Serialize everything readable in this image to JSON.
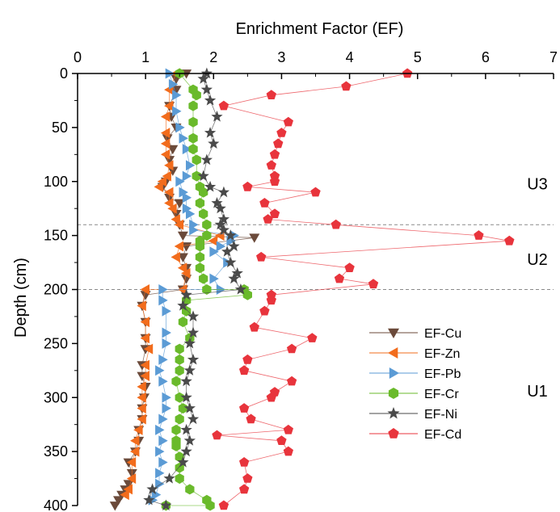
{
  "chart_data": {
    "type": "scatter",
    "title": "",
    "xlabel": "Enrichment Factor (EF)",
    "ylabel": "Depth (cm)",
    "xlim": [
      0,
      7
    ],
    "ylim": [
      0,
      400
    ],
    "y_reversed": true,
    "x_axis_position": "top",
    "x_ticks": [
      "0",
      "1",
      "2",
      "3",
      "4",
      "5",
      "6",
      "7"
    ],
    "y_ticks": [
      "0",
      "50",
      "100",
      "150",
      "200",
      "250",
      "300",
      "350",
      "400"
    ],
    "x_tick_values": [
      0,
      1,
      2,
      3,
      4,
      5,
      6,
      7
    ],
    "y_tick_values": [
      0,
      50,
      100,
      150,
      200,
      250,
      300,
      350,
      400
    ],
    "boundaries": [
      140,
      200
    ],
    "units": [
      {
        "label": "U3",
        "depth": 102
      },
      {
        "label": "U2",
        "depth": 172
      },
      {
        "label": "U1",
        "depth": 294
      }
    ],
    "legend_position": "lower-right",
    "series": [
      {
        "name": "EF-Cu",
        "color": "#6b4a3a",
        "marker": "triangle-down",
        "x": [
          1.6,
          1.45,
          1.45,
          1.35,
          1.38,
          1.45,
          1.32,
          1.4,
          1.35,
          1.4,
          1.3,
          1.25,
          1.35,
          1.5,
          1.45,
          1.5,
          1.55,
          2.6,
          1.6,
          1.55,
          1.6,
          1.6,
          1.55,
          1.55,
          1.0,
          0.95,
          1.0,
          1.0,
          1.0,
          0.95,
          0.95,
          1.0,
          0.98,
          0.95,
          0.95,
          0.9,
          0.9,
          0.85,
          0.75,
          0.8,
          0.75,
          0.7,
          0.65,
          0.6,
          0.55
        ],
        "y": [
          0,
          5,
          15,
          30,
          40,
          50,
          60,
          70,
          80,
          90,
          100,
          105,
          115,
          120,
          130,
          140,
          150,
          152,
          160,
          170,
          180,
          190,
          200,
          200,
          205,
          215,
          230,
          245,
          255,
          270,
          280,
          290,
          300,
          310,
          320,
          330,
          340,
          350,
          360,
          370,
          380,
          385,
          390,
          395,
          400
        ]
      },
      {
        "name": "EF-Zn",
        "color": "#f26c1c",
        "marker": "triangle-left",
        "x": [
          1.45,
          1.35,
          1.35,
          1.3,
          1.3,
          1.3,
          1.3,
          1.35,
          1.32,
          1.25,
          1.2,
          1.35,
          1.35,
          1.4,
          1.45,
          1.5,
          2.1,
          2.0,
          1.5,
          1.45,
          1.55,
          1.6,
          1.55,
          1.0,
          0.95,
          1.0,
          1.0,
          1.05,
          1.0,
          1.0,
          0.95,
          0.95,
          0.95,
          0.95,
          0.9,
          0.85,
          0.85,
          0.8,
          0.8,
          0.75,
          0.7
        ],
        "y": [
          0,
          15,
          30,
          40,
          55,
          65,
          75,
          85,
          95,
          100,
          105,
          110,
          120,
          125,
          135,
          140,
          150,
          155,
          160,
          170,
          180,
          185,
          200,
          200,
          215,
          230,
          245,
          255,
          270,
          280,
          290,
          300,
          310,
          320,
          330,
          340,
          350,
          360,
          375,
          385,
          390
        ]
      },
      {
        "name": "EF-Pb",
        "color": "#5b9bd5",
        "marker": "triangle-right",
        "x": [
          1.35,
          1.4,
          1.45,
          1.45,
          1.5,
          1.55,
          1.6,
          1.65,
          1.6,
          1.5,
          1.55,
          1.6,
          1.6,
          1.65,
          1.7,
          1.7,
          2.3,
          2.25,
          2.1,
          2.0,
          2.2,
          2.0,
          2.1,
          1.25,
          1.25,
          1.3,
          1.3,
          1.3,
          1.25,
          1.2,
          1.25,
          1.3,
          1.3,
          1.25,
          1.2,
          1.25,
          1.2,
          1.25,
          1.2,
          1.2,
          1.15,
          1.1
        ],
        "y": [
          0,
          10,
          20,
          35,
          50,
          60,
          70,
          85,
          95,
          100,
          110,
          115,
          125,
          130,
          140,
          145,
          150,
          155,
          160,
          165,
          175,
          190,
          200,
          200,
          210,
          220,
          240,
          250,
          265,
          275,
          285,
          300,
          310,
          320,
          330,
          340,
          350,
          360,
          370,
          380,
          390,
          395
        ]
      },
      {
        "name": "EF-Cr",
        "color": "#6aba2b",
        "marker": "hexagon",
        "x": [
          1.5,
          1.7,
          1.75,
          1.7,
          1.7,
          1.7,
          1.7,
          1.75,
          1.75,
          1.8,
          1.85,
          1.8,
          1.85,
          1.9,
          1.9,
          1.8,
          1.8,
          1.8,
          1.8,
          1.85,
          1.9,
          2.45,
          2.5,
          1.6,
          1.6,
          1.55,
          1.65,
          1.5,
          1.5,
          1.5,
          1.45,
          1.5,
          1.55,
          1.5,
          1.45,
          1.45,
          1.45,
          1.5,
          1.5,
          1.5,
          1.65,
          1.9,
          1.95,
          1.3
        ],
        "y": [
          0,
          15,
          20,
          30,
          45,
          60,
          70,
          80,
          95,
          105,
          110,
          120,
          130,
          140,
          150,
          155,
          160,
          170,
          180,
          190,
          200,
          200,
          205,
          210,
          220,
          230,
          245,
          255,
          265,
          275,
          285,
          300,
          310,
          320,
          330,
          340,
          345,
          355,
          365,
          375,
          385,
          395,
          400,
          400
        ]
      },
      {
        "name": "EF-Ni",
        "color": "#4a4a4a",
        "marker": "star",
        "x": [
          1.9,
          1.85,
          1.9,
          1.95,
          2.05,
          1.95,
          2.0,
          1.9,
          1.85,
          1.95,
          2.15,
          2.05,
          2.1,
          2.15,
          2.1,
          2.15,
          2.25,
          2.3,
          2.2,
          2.25,
          2.35,
          2.3,
          2.4,
          1.6,
          1.55,
          1.7,
          1.7,
          1.65,
          1.7,
          1.65,
          1.6,
          1.6,
          1.65,
          1.7,
          1.6,
          1.65,
          1.6,
          1.55,
          1.35,
          1.1,
          1.05,
          1.3
        ],
        "y": [
          0,
          5,
          15,
          25,
          40,
          55,
          65,
          80,
          95,
          105,
          110,
          120,
          125,
          135,
          140,
          145,
          150,
          160,
          165,
          175,
          185,
          190,
          200,
          205,
          215,
          225,
          240,
          250,
          265,
          275,
          285,
          300,
          310,
          320,
          330,
          340,
          350,
          360,
          375,
          385,
          395,
          400
        ]
      },
      {
        "name": "EF-Cd",
        "color": "#e8343c",
        "marker": "pentagon",
        "x": [
          4.85,
          3.95,
          2.85,
          2.15,
          3.1,
          3.0,
          2.95,
          2.9,
          2.85,
          2.9,
          2.9,
          2.5,
          3.5,
          2.75,
          2.9,
          2.8,
          3.8,
          5.9,
          6.35,
          2.7,
          4.0,
          3.85,
          4.35,
          2.85,
          2.85,
          2.75,
          2.6,
          3.45,
          3.15,
          2.5,
          2.45,
          3.15,
          2.9,
          2.85,
          2.45,
          2.55,
          3.1,
          2.05,
          3.0,
          3.1,
          2.45,
          2.5,
          2.45,
          2.15
        ],
        "y": [
          0,
          12,
          20,
          30,
          45,
          55,
          65,
          75,
          85,
          95,
          100,
          105,
          110,
          120,
          130,
          135,
          140,
          150,
          155,
          170,
          180,
          190,
          195,
          205,
          210,
          220,
          235,
          245,
          255,
          265,
          275,
          285,
          295,
          300,
          310,
          320,
          330,
          335,
          340,
          350,
          360,
          375,
          385,
          400
        ]
      }
    ]
  }
}
